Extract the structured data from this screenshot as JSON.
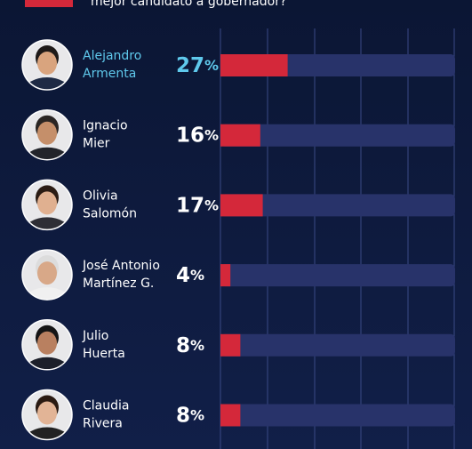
{
  "chart_data": {
    "type": "bar",
    "subtitle": "mejor candidato a gobernador?",
    "categories": [
      [
        "Alejandro",
        "Armenta"
      ],
      [
        "Ignacio",
        "Mier"
      ],
      [
        "Olivia",
        "Salomón"
      ],
      [
        "José Antonio",
        "Martínez G."
      ],
      [
        "Julio",
        "Huerta"
      ],
      [
        "Claudia",
        "Rivera"
      ]
    ],
    "values": [
      27,
      16,
      17,
      4,
      8,
      8
    ],
    "value_labels": [
      "27%",
      "16%",
      "17%",
      "4%",
      "8%",
      "8%"
    ],
    "color": "#d4283a",
    "xlim": [
      0,
      100
    ]
  }
}
